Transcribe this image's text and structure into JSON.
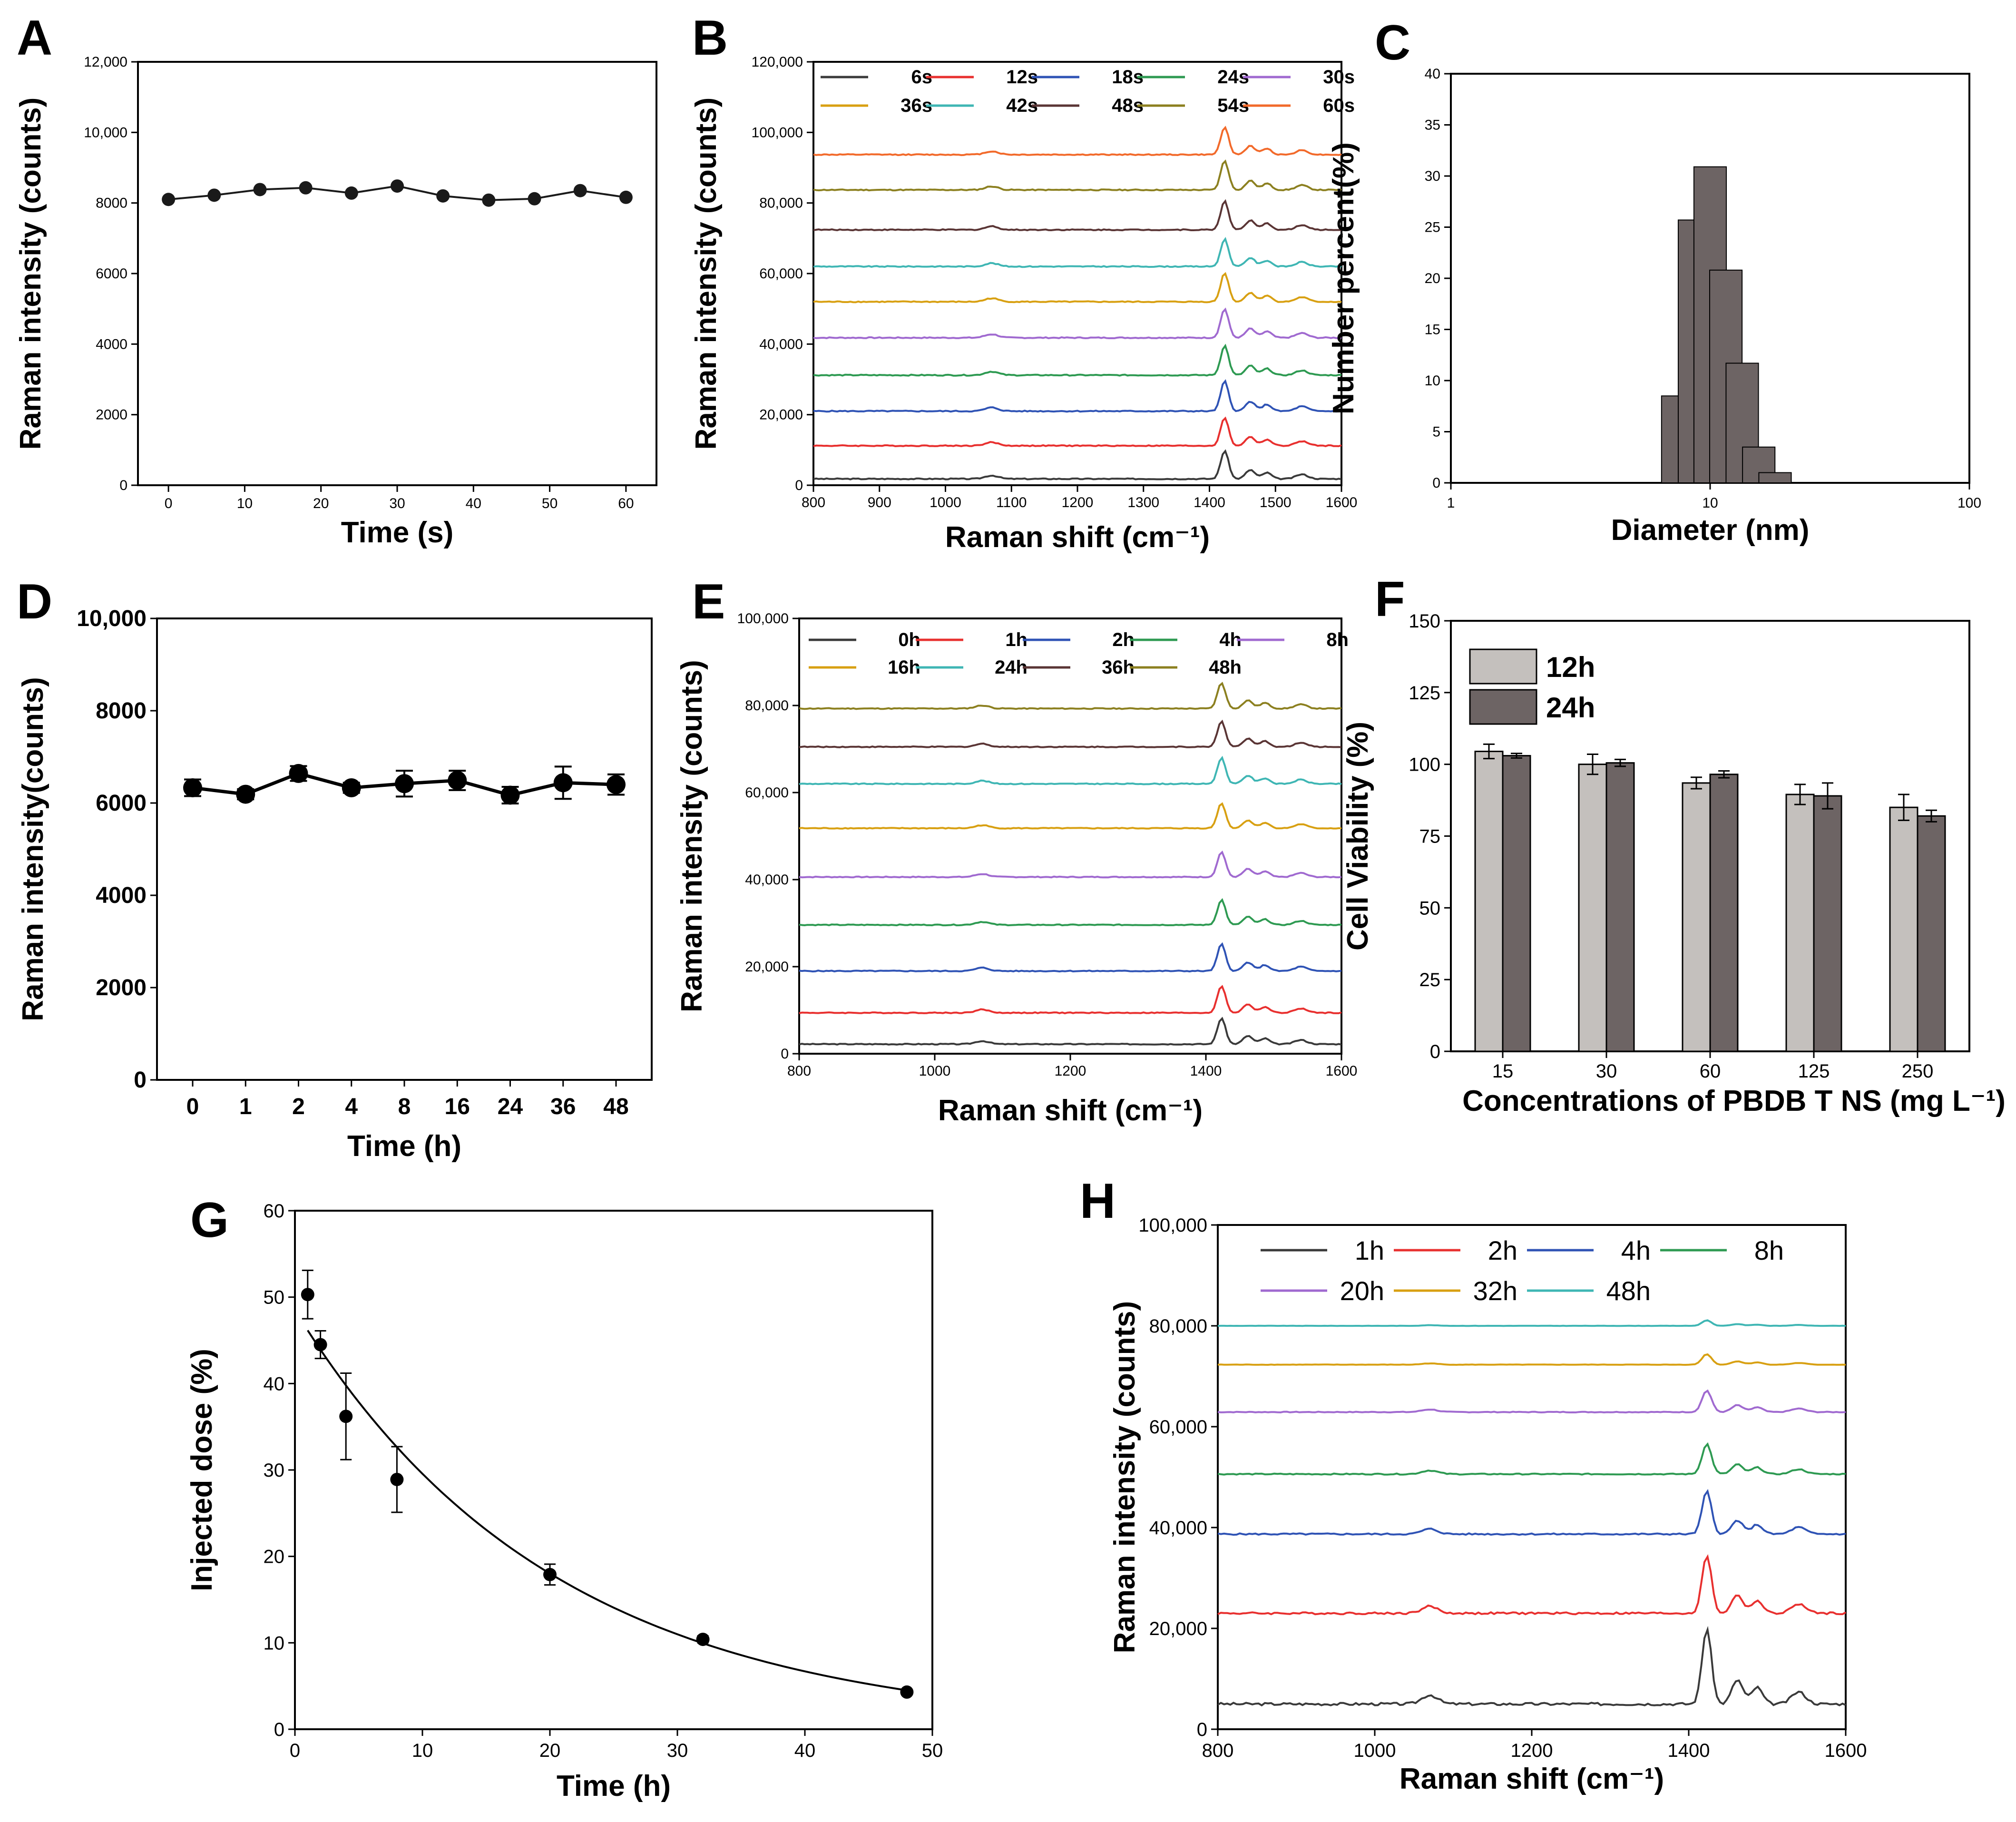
{
  "figure": {
    "panel_labels": [
      "A",
      "B",
      "C",
      "D",
      "E",
      "F",
      "G",
      "H"
    ]
  },
  "chart_data": [
    {
      "id": "A",
      "type": "line",
      "xlabel": "Time (s)",
      "ylabel": "Raman intensity (counts)",
      "xlim": [
        -4,
        64
      ],
      "ylim": [
        0,
        12000
      ],
      "xticks": [
        "0",
        "10",
        "20",
        "30",
        "40",
        "50",
        "60"
      ],
      "yticks": [
        "0",
        "2000",
        "4000",
        "6000",
        "8000",
        "10,000",
        "12,000"
      ],
      "x": [
        0,
        6,
        12,
        18,
        24,
        30,
        36,
        42,
        48,
        54,
        60
      ],
      "values": [
        8100,
        8220,
        8380,
        8430,
        8280,
        8480,
        8200,
        8080,
        8120,
        8350,
        8160
      ],
      "color": "#1a1a1a",
      "markers": "circle"
    },
    {
      "id": "B",
      "type": "line",
      "xlabel": "Raman shift (cm⁻¹)",
      "ylabel": "Raman intensity (counts)",
      "xlim": [
        800,
        1600
      ],
      "ylim": [
        0,
        120000
      ],
      "xticks": [
        "800",
        "900",
        "1000",
        "1100",
        "1200",
        "1300",
        "1400",
        "1500",
        "1600"
      ],
      "yticks": [
        "0",
        "20,000",
        "40,000",
        "60,000",
        "80,000",
        "100,000",
        "120,000"
      ],
      "peaks_cm": [
        1070,
        1423,
        1462,
        1487,
        1540
      ],
      "series": [
        {
          "name": "6s",
          "baseline": 1800,
          "peak": 9800,
          "color": "#3a3a3a"
        },
        {
          "name": "12s",
          "baseline": 11200,
          "peak": 19200,
          "color": "#e8302f"
        },
        {
          "name": "18s",
          "baseline": 21000,
          "peak": 29500,
          "color": "#2f53b5"
        },
        {
          "name": "24s",
          "baseline": 31200,
          "peak": 39600,
          "color": "#2e9a52"
        },
        {
          "name": "30s",
          "baseline": 41800,
          "peak": 50000,
          "color": "#a06ad0"
        },
        {
          "name": "36s",
          "baseline": 52000,
          "peak": 60200,
          "color": "#d8a012"
        },
        {
          "name": "42s",
          "baseline": 62000,
          "peak": 69800,
          "color": "#3fb6b4"
        },
        {
          "name": "48s",
          "baseline": 72400,
          "peak": 80600,
          "color": "#5a3535"
        },
        {
          "name": "54s",
          "baseline": 83700,
          "peak": 92000,
          "color": "#8c8020"
        },
        {
          "name": "60s",
          "baseline": 93700,
          "peak": 101600,
          "color": "#f26a2b"
        }
      ]
    },
    {
      "id": "C",
      "type": "bar",
      "scale": "log-x",
      "xlabel": "Diameter (nm)",
      "ylabel": "Number percent(%)",
      "xlim": [
        1,
        100
      ],
      "ylim": [
        0,
        40
      ],
      "xticks": [
        "1",
        "10",
        "100"
      ],
      "yticks": [
        "0",
        "5",
        "10",
        "15",
        "20",
        "25",
        "30",
        "35",
        "40"
      ],
      "categories": [
        7.5,
        8.7,
        10.0,
        11.5,
        13.3,
        15.4,
        17.8
      ],
      "values": [
        8.5,
        25.7,
        30.9,
        20.8,
        11.7,
        3.5,
        1.0
      ],
      "color": "#6d6464"
    },
    {
      "id": "D",
      "type": "line",
      "xlabel": "Time (h)",
      "ylabel": "Raman intensity(counts)",
      "ylim": [
        0,
        10000
      ],
      "categories": [
        "0",
        "1",
        "2",
        "4",
        "8",
        "16",
        "24",
        "36",
        "48"
      ],
      "yticks": [
        "0",
        "2000",
        "4000",
        "6000",
        "8000",
        "10,000"
      ],
      "values": [
        6330,
        6190,
        6640,
        6330,
        6420,
        6490,
        6170,
        6440,
        6400
      ],
      "errors": [
        180,
        110,
        160,
        110,
        280,
        210,
        180,
        350,
        220
      ],
      "color": "#000000",
      "markers": "circle"
    },
    {
      "id": "E",
      "type": "line",
      "xlabel": "Raman shift (cm⁻¹)",
      "ylabel": "Raman intensity (counts)",
      "xlim": [
        800,
        1600
      ],
      "ylim": [
        0,
        100000
      ],
      "xticks": [
        "800",
        "1000",
        "1200",
        "1400",
        "1600"
      ],
      "yticks": [
        "0",
        "20,000",
        "40,000",
        "60,000",
        "80,000",
        "100,000"
      ],
      "peaks_cm": [
        1070,
        1423,
        1462,
        1487,
        1540
      ],
      "series": [
        {
          "name": "0h",
          "baseline": 2200,
          "peak": 8200,
          "color": "#3a3a3a"
        },
        {
          "name": "1h",
          "baseline": 9400,
          "peak": 15600,
          "color": "#e8302f"
        },
        {
          "name": "2h",
          "baseline": 19000,
          "peak": 25200,
          "color": "#2f53b5"
        },
        {
          "name": "4h",
          "baseline": 29600,
          "peak": 35400,
          "color": "#2e9a52"
        },
        {
          "name": "8h",
          "baseline": 40600,
          "peak": 46400,
          "color": "#a06ad0"
        },
        {
          "name": "16h",
          "baseline": 51800,
          "peak": 57600,
          "color": "#d8a012"
        },
        {
          "name": "24h",
          "baseline": 62000,
          "peak": 68000,
          "color": "#3fb6b4"
        },
        {
          "name": "36h",
          "baseline": 70500,
          "peak": 76400,
          "color": "#5a3535"
        },
        {
          "name": "48h",
          "baseline": 79300,
          "peak": 85200,
          "color": "#8c8020"
        }
      ]
    },
    {
      "id": "F",
      "type": "bar",
      "xlabel": "Concentrations of PBDB T NS (mg L⁻¹)",
      "ylabel": "Cell Viability (%)",
      "ylim": [
        0,
        150
      ],
      "categories": [
        "15",
        "30",
        "60",
        "125",
        "250"
      ],
      "yticks": [
        "0",
        "25",
        "50",
        "75",
        "100",
        "125",
        "150"
      ],
      "series": [
        {
          "name": "12h",
          "values": [
            104.5,
            100,
            93.5,
            89.5,
            85
          ],
          "errors": [
            2.5,
            3.5,
            2,
            3.5,
            4.5
          ],
          "color": "#c4c0bd"
        },
        {
          "name": "24h",
          "values": [
            103,
            100.5,
            96.5,
            89,
            82
          ],
          "errors": [
            0.8,
            1.2,
            1.2,
            4.5,
            2
          ],
          "color": "#6d6464"
        }
      ]
    },
    {
      "id": "G",
      "type": "scatter",
      "xlabel": "Time (h)",
      "ylabel": "Injected dose (%)",
      "xlim": [
        0,
        50
      ],
      "ylim": [
        0,
        60
      ],
      "xticks": [
        "0",
        "10",
        "20",
        "30",
        "40",
        "50"
      ],
      "yticks": [
        "0",
        "10",
        "20",
        "30",
        "40",
        "50",
        "60"
      ],
      "x": [
        1,
        2,
        4,
        8,
        20,
        32,
        48
      ],
      "values": [
        50.3,
        44.5,
        36.2,
        28.9,
        17.9,
        10.4,
        4.3
      ],
      "errors": [
        2.8,
        1.6,
        5,
        3.8,
        1.2,
        0.4,
        0.3
      ],
      "fit": {
        "type": "exponential",
        "a": 48.5,
        "k": 0.0495
      }
    },
    {
      "id": "H",
      "type": "line",
      "xlabel": "Raman shift (cm⁻¹)",
      "ylabel": "Raman intensity (counts)",
      "xlim": [
        800,
        1600
      ],
      "ylim": [
        0,
        100000
      ],
      "xticks": [
        "800",
        "1000",
        "1200",
        "1400",
        "1600"
      ],
      "yticks": [
        "0",
        "20,000",
        "40,000",
        "60,000",
        "80,000",
        "100,000"
      ],
      "peaks_cm": [
        1070,
        1423,
        1462,
        1487,
        1540
      ],
      "series": [
        {
          "name": "1h",
          "baseline": 5000,
          "peak": 20000,
          "color": "#3a3a3a"
        },
        {
          "name": "2h",
          "baseline": 23000,
          "peak": 34500,
          "color": "#e8302f"
        },
        {
          "name": "4h",
          "baseline": 38700,
          "peak": 47200,
          "color": "#2f53b5"
        },
        {
          "name": "8h",
          "baseline": 50600,
          "peak": 56600,
          "color": "#2e9a52"
        },
        {
          "name": "20h",
          "baseline": 62900,
          "peak": 67200,
          "color": "#a06ad0"
        },
        {
          "name": "32h",
          "baseline": 72300,
          "peak": 74400,
          "color": "#d8a012"
        },
        {
          "name": "48h",
          "baseline": 80000,
          "peak": 81100,
          "color": "#3fb6b4"
        }
      ]
    }
  ]
}
